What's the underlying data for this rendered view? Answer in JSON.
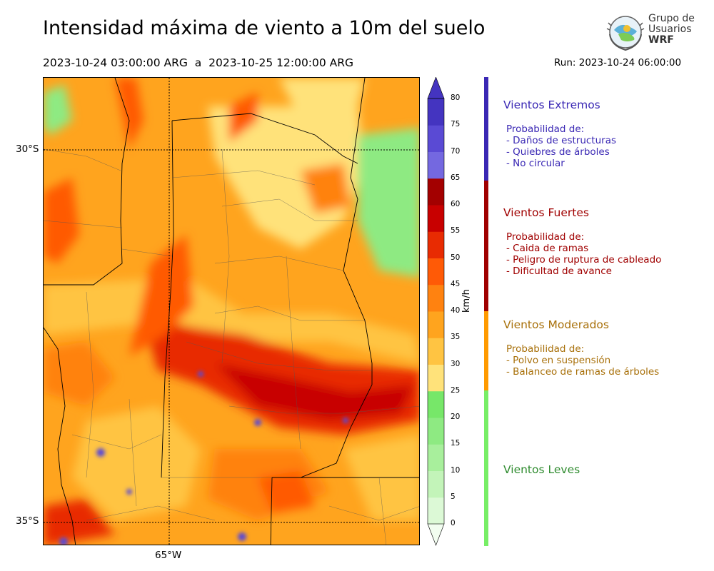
{
  "title": "Intensidad máxima de viento a 10m del suelo",
  "period": "2023-10-24 03:00:00 ARG  a  2023-10-25 12:00:00 ARG",
  "run": "Run: 2023-10-24 06:00:00",
  "logo": {
    "line1": "Grupo de",
    "line2": "Usuarios",
    "line3": "WRF"
  },
  "axes": {
    "lat_labels": [
      "30°S",
      "35°S"
    ],
    "lon_labels": [
      "65°W"
    ]
  },
  "colorbar": {
    "label": "km/h",
    "ticks": [
      "0",
      "5",
      "10",
      "15",
      "20",
      "25",
      "30",
      "35",
      "40",
      "45",
      "50",
      "55",
      "60",
      "65",
      "70",
      "75",
      "80"
    ],
    "colors": [
      "#f2fdf0",
      "#dcf9d6",
      "#c3f4b9",
      "#a8ef9c",
      "#8eea82",
      "#77e769",
      "#ffe27a",
      "#ffc442",
      "#ffa41e",
      "#ff8210",
      "#ff5a06",
      "#e82b02",
      "#c80000",
      "#a30000",
      "#7468e0",
      "#5a4ad4",
      "#4434c0"
    ]
  },
  "categories": [
    {
      "name": "Vientos Extremos",
      "color": "#3a28b4",
      "lines": [
        "Probabilidad de:",
        "- Daños de estructuras",
        "- Quiebres de árboles",
        "- No circular"
      ]
    },
    {
      "name": "Vientos Fuertes",
      "color": "#a00000",
      "lines": [
        "Probabilidad de:",
        "- Caida de ramas",
        "- Peligro de ruptura de cableado",
        "- Dificultad de avance"
      ]
    },
    {
      "name": "Vientos Moderados",
      "color": "#a8700a",
      "lines": [
        "Probabilidad de:",
        "- Polvo en suspensión",
        "- Balanceo de ramas de árboles"
      ]
    },
    {
      "name": "Vientos Leves",
      "color": "#2e8b2e",
      "lines": []
    }
  ]
}
